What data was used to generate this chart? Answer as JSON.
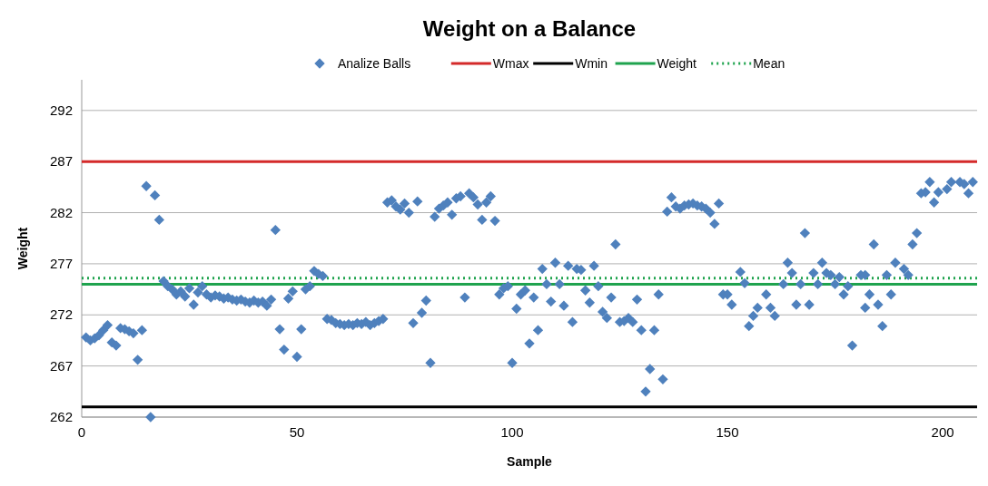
{
  "chart_data": {
    "type": "scatter",
    "title": "Weight on a Balance",
    "xlabel": "Sample",
    "ylabel": "Weight",
    "xlim": [
      0,
      208
    ],
    "xticks": [
      0,
      50,
      100,
      150,
      200
    ],
    "ylim": [
      262,
      295
    ],
    "yticks": [
      262,
      267,
      272,
      277,
      282,
      287,
      292
    ],
    "grid": "y",
    "legend": "top",
    "series": [
      {
        "name": "Analize Balls",
        "color": "#4f81bd",
        "marker": "diamond",
        "x": [
          1,
          2,
          3,
          4,
          5,
          6,
          7,
          8,
          9,
          10,
          11,
          12,
          13,
          14,
          15,
          16,
          17,
          18,
          19,
          20,
          21,
          22,
          23,
          24,
          25,
          26,
          27,
          28,
          29,
          30,
          31,
          32,
          33,
          34,
          35,
          36,
          37,
          38,
          39,
          40,
          41,
          42,
          43,
          44,
          45,
          46,
          47,
          48,
          49,
          50,
          51,
          52,
          53,
          54,
          55,
          56,
          57,
          58,
          59,
          60,
          61,
          62,
          63,
          64,
          65,
          66,
          67,
          68,
          69,
          70,
          71,
          72,
          73,
          74,
          75,
          76,
          77,
          78,
          79,
          80,
          81,
          82,
          83,
          84,
          85,
          86,
          87,
          88,
          89,
          90,
          91,
          92,
          93,
          94,
          95,
          96,
          97,
          98,
          99,
          100,
          101,
          102,
          103,
          104,
          105,
          106,
          107,
          108,
          109,
          110,
          111,
          112,
          113,
          114,
          115,
          116,
          117,
          118,
          119,
          120,
          121,
          122,
          123,
          124,
          125,
          126,
          127,
          128,
          129,
          130,
          131,
          132,
          133,
          134,
          135,
          136,
          137,
          138,
          139,
          140,
          141,
          142,
          143,
          144,
          145,
          146,
          147,
          148,
          149,
          150,
          151,
          153,
          154,
          155,
          156,
          157,
          159,
          160,
          161,
          163,
          164,
          165,
          166,
          167,
          168,
          169,
          170,
          171,
          172,
          173,
          174,
          175,
          176,
          177,
          178,
          179,
          181,
          182,
          182,
          183,
          184,
          185,
          186,
          187,
          188,
          189,
          191,
          192,
          193,
          194,
          195,
          196,
          197,
          198,
          199,
          201,
          202,
          204,
          205,
          206,
          207
        ],
        "values": [
          269.8,
          269.5,
          269.7,
          270.0,
          270.5,
          271.0,
          269.3,
          269.0,
          270.7,
          270.6,
          270.4,
          270.2,
          267.6,
          270.5,
          284.6,
          262.0,
          283.7,
          281.3,
          275.3,
          274.8,
          274.5,
          274.0,
          274.3,
          273.8,
          274.6,
          273.0,
          274.2,
          274.8,
          274.0,
          273.7,
          273.9,
          273.8,
          273.6,
          273.7,
          273.5,
          273.4,
          273.5,
          273.3,
          273.2,
          273.4,
          273.2,
          273.3,
          272.9,
          273.5,
          280.3,
          270.6,
          268.6,
          273.6,
          274.3,
          267.9,
          270.6,
          274.5,
          274.8,
          276.3,
          276.0,
          275.8,
          271.6,
          271.5,
          271.2,
          271.1,
          271.0,
          271.1,
          271.0,
          271.2,
          271.1,
          271.3,
          271.0,
          271.2,
          271.4,
          271.6,
          283.0,
          283.2,
          282.6,
          282.3,
          282.9,
          282.0,
          271.2,
          283.1,
          272.2,
          273.4,
          267.3,
          281.6,
          282.4,
          282.7,
          283.0,
          281.8,
          283.4,
          283.6,
          273.7,
          283.9,
          283.5,
          282.8,
          281.3,
          283.0,
          283.6,
          281.2,
          274.0,
          274.6,
          274.8,
          267.3,
          272.6,
          274.0,
          274.4,
          269.2,
          273.7,
          270.5,
          276.5,
          275.0,
          273.3,
          277.1,
          275.0,
          272.9,
          276.8,
          271.3,
          276.5,
          276.4,
          274.4,
          273.2,
          276.8,
          274.8,
          272.3,
          271.7,
          273.7,
          278.9,
          271.3,
          271.4,
          271.7,
          271.3,
          273.5,
          270.5,
          264.5,
          266.7,
          270.5,
          274.0,
          265.7,
          282.1,
          283.5,
          282.6,
          282.4,
          282.7,
          282.8,
          282.9,
          282.7,
          282.6,
          282.4,
          282.0,
          280.9,
          282.9,
          274.0,
          274.0,
          273.0,
          276.2,
          275.1,
          270.9,
          271.9,
          272.7,
          274.0,
          272.7,
          271.9,
          275.0,
          277.1,
          276.1,
          273.0,
          275.0,
          280.0,
          273.0,
          276.1,
          275.0,
          277.1,
          276.1,
          275.9,
          275.0,
          275.7,
          274.0,
          274.8,
          269.0,
          275.9,
          275.9,
          272.7,
          274.0,
          278.9,
          273.0,
          270.9,
          275.9,
          274.0,
          277.1,
          276.5,
          275.9,
          278.9,
          280.0,
          283.9,
          284.0,
          285.0,
          283.0,
          284.0,
          284.3,
          285.0,
          285.0,
          284.8,
          283.9,
          285.0
        ]
      },
      {
        "name": "Wmax",
        "type": "line",
        "color": "#d42a2a",
        "x": [
          0,
          208
        ],
        "values": [
          287,
          287
        ],
        "line_style": "solid",
        "marker": "none"
      },
      {
        "name": "Wmin",
        "type": "line",
        "color": "#000000",
        "x": [
          0,
          208
        ],
        "values": [
          263,
          263
        ],
        "line_style": "solid",
        "marker": "none"
      },
      {
        "name": "Weight",
        "type": "line",
        "color": "#1fa34e",
        "x": [
          0,
          208
        ],
        "values": [
          275,
          275
        ],
        "line_style": "solid",
        "marker": "none"
      },
      {
        "name": "Mean",
        "type": "line",
        "color": "#1fa34e",
        "x": [
          0,
          208
        ],
        "values": [
          275.6,
          275.6
        ],
        "line_style": "dotted",
        "marker": "none"
      }
    ]
  }
}
